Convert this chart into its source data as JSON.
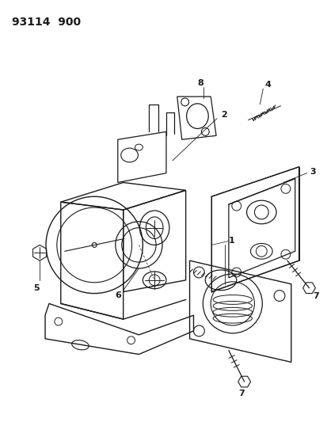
{
  "title": "93114  900",
  "background_color": "#ffffff",
  "line_color": "#1a1a1a",
  "figsize": [
    4.14,
    5.33
  ],
  "dpi": 100
}
